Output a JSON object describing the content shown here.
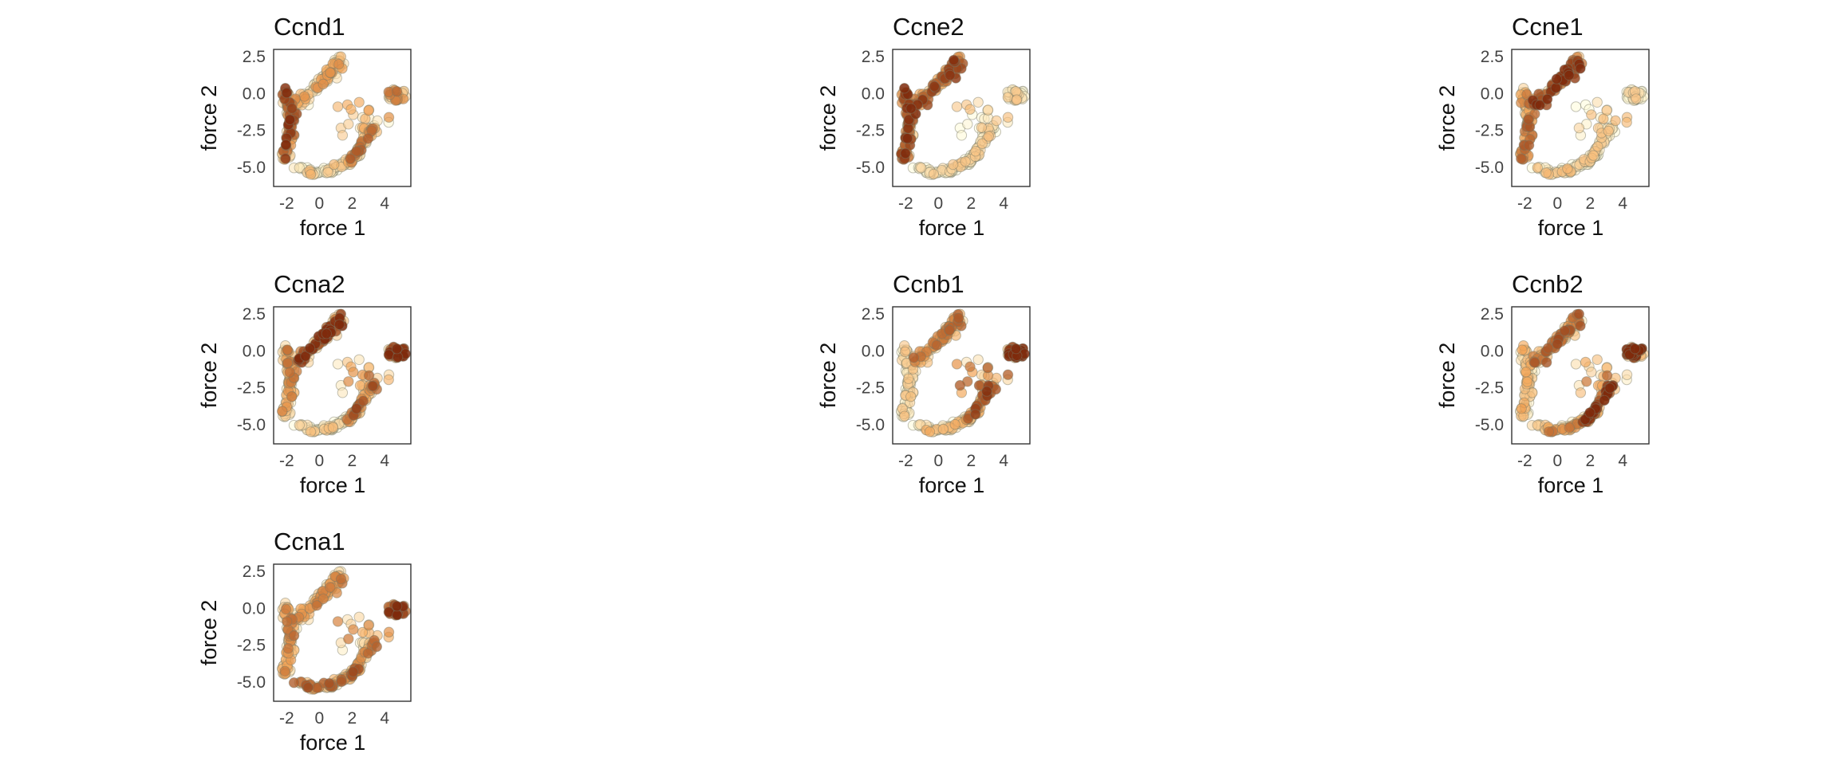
{
  "chart_data": [
    {
      "type": "scatter",
      "title": "Ccnd1",
      "xlabel": "force  1",
      "ylabel": "force  2",
      "xlim": [
        -2.8,
        5.6
      ],
      "ylim": [
        -6.3,
        3.0
      ],
      "xticks": [
        "-2",
        "0",
        "2",
        "4"
      ],
      "yticks": [
        "2.5",
        "0.0",
        "-2.5",
        "-5.0"
      ],
      "expression": {
        "upper_arm": 0.35,
        "left_arm": 0.75,
        "bottom_arc": 0.15,
        "right_arc": 0.55,
        "right_tip": 0.5,
        "scatter": 0.3
      },
      "grid": false,
      "legend": "none"
    },
    {
      "type": "scatter",
      "title": "Ccne2",
      "xlabel": "force  1",
      "ylabel": "force  2",
      "xlim": [
        -2.8,
        5.6
      ],
      "ylim": [
        -6.3,
        3.0
      ],
      "xticks": [
        "-2",
        "0",
        "2",
        "4"
      ],
      "yticks": [
        "2.5",
        "0.0",
        "-2.5",
        "-5.0"
      ],
      "expression": {
        "upper_arm": 0.7,
        "left_arm": 0.85,
        "bottom_arc": 0.05,
        "right_arc": 0.08,
        "right_tip": 0.05,
        "scatter": 0.1
      },
      "grid": false,
      "legend": "none"
    },
    {
      "type": "scatter",
      "title": "Ccne1",
      "xlabel": "force  1",
      "ylabel": "force  2",
      "xlim": [
        -2.8,
        5.6
      ],
      "ylim": [
        -6.3,
        3.0
      ],
      "xticks": [
        "-2",
        "0",
        "2",
        "4"
      ],
      "yticks": [
        "2.5",
        "0.0",
        "-2.5",
        "-5.0"
      ],
      "expression": {
        "upper_arm": 0.8,
        "left_arm": 0.55,
        "bottom_arc": 0.12,
        "right_arc": 0.08,
        "right_tip": 0.05,
        "scatter": 0.15
      },
      "grid": false,
      "legend": "none"
    },
    {
      "type": "scatter",
      "title": "Ccna2",
      "xlabel": "force  1",
      "ylabel": "force  2",
      "xlim": [
        -2.8,
        5.6
      ],
      "ylim": [
        -6.3,
        3.0
      ],
      "xticks": [
        "-2",
        "0",
        "2",
        "4"
      ],
      "yticks": [
        "2.5",
        "0.0",
        "-2.5",
        "-5.0"
      ],
      "expression": {
        "upper_arm": 0.85,
        "left_arm": 0.45,
        "bottom_arc": 0.1,
        "right_arc": 0.7,
        "right_tip": 0.95,
        "scatter": 0.5
      },
      "grid": false,
      "legend": "none"
    },
    {
      "type": "scatter",
      "title": "Ccnb1",
      "xlabel": "force  1",
      "ylabel": "force  2",
      "xlim": [
        -2.8,
        5.6
      ],
      "ylim": [
        -6.3,
        3.0
      ],
      "xticks": [
        "-2",
        "0",
        "2",
        "4"
      ],
      "yticks": [
        "2.5",
        "0.0",
        "-2.5",
        "-5.0"
      ],
      "expression": {
        "upper_arm": 0.55,
        "left_arm": 0.1,
        "bottom_arc": 0.2,
        "right_arc": 0.7,
        "right_tip": 1.0,
        "scatter": 0.6
      },
      "grid": false,
      "legend": "none"
    },
    {
      "type": "scatter",
      "title": "Ccnb2",
      "xlabel": "force  1",
      "ylabel": "force  2",
      "xlim": [
        -2.8,
        5.6
      ],
      "ylim": [
        -6.3,
        3.0
      ],
      "xticks": [
        "-2",
        "0",
        "2",
        "4"
      ],
      "yticks": [
        "2.5",
        "0.0",
        "-2.5",
        "-5.0"
      ],
      "expression": {
        "upper_arm": 0.6,
        "left_arm": 0.25,
        "bottom_arc": 0.45,
        "right_arc": 0.9,
        "right_tip": 1.0,
        "scatter": 0.5
      },
      "grid": false,
      "legend": "none"
    },
    {
      "type": "scatter",
      "title": "Ccna1",
      "xlabel": "force  1",
      "ylabel": "force  2",
      "xlim": [
        -2.8,
        5.6
      ],
      "ylim": [
        -6.3,
        3.0
      ],
      "xticks": [
        "-2",
        "0",
        "2",
        "4"
      ],
      "yticks": [
        "2.5",
        "0.0",
        "-2.5",
        "-5.0"
      ],
      "expression": {
        "upper_arm": 0.45,
        "left_arm": 0.5,
        "bottom_arc": 0.6,
        "right_arc": 0.5,
        "right_tip": 0.85,
        "scatter": 0.45
      },
      "grid": false,
      "legend": "none"
    }
  ],
  "colors": {
    "low": "#fffbd8",
    "mid": "#f3a354",
    "high": "#7f2a0c",
    "frame": "#333333"
  }
}
